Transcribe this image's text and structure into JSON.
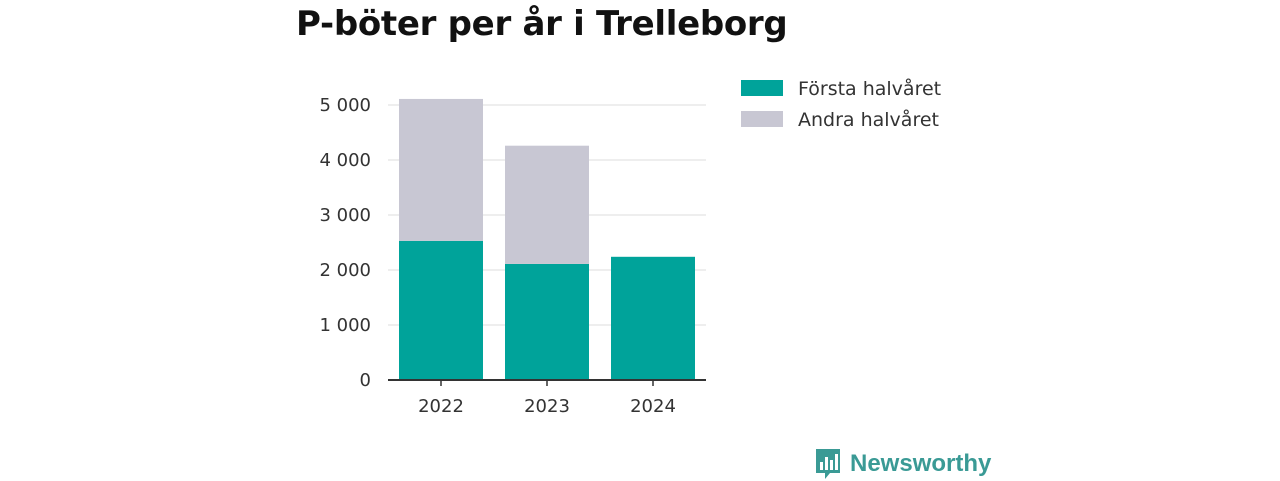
{
  "title": "P-böter per år i Trelleborg",
  "brand": {
    "name": "Newsworthy",
    "logo_icon": "bar-chart-bubble-icon"
  },
  "chart_data": {
    "type": "bar",
    "stacked": true,
    "categories": [
      "2022",
      "2023",
      "2024"
    ],
    "series": [
      {
        "name": "Första halvåret",
        "color": "#00a39a",
        "values": [
          2530,
          2110,
          2240
        ]
      },
      {
        "name": "Andra halvåret",
        "color": "#c8c7d3",
        "values": [
          2580,
          2150,
          0
        ]
      }
    ],
    "ylim": [
      0,
      5000
    ],
    "yticks": [
      0,
      1000,
      2000,
      3000,
      4000,
      5000
    ],
    "ytick_labels": [
      "0",
      "1 000",
      "2 000",
      "3 000",
      "4 000",
      "5 000"
    ],
    "xlabel": "",
    "ylabel": "",
    "grid": true,
    "legend_position": "right"
  }
}
